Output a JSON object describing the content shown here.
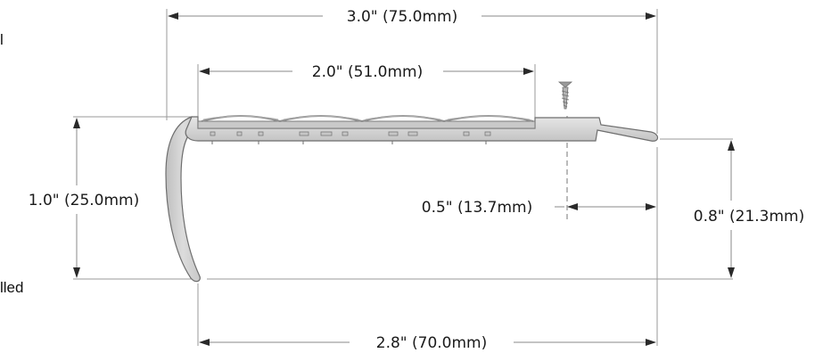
{
  "side_text": {
    "top": "l",
    "bottom": "lled"
  },
  "dimensions": {
    "overall_width": "3.0\" (75.0mm)",
    "tread_width": "2.0\" (51.0mm)",
    "nose_height": "1.0\" (25.0mm)",
    "screw_offset": "0.5\" (13.7mm)",
    "flange_height": "0.8\" (21.3mm)",
    "base_width": "2.8\" (70.0mm)"
  },
  "colors": {
    "profile_fill": "#d4d4d4",
    "profile_stroke": "#6e6e6e",
    "insert_fill": "#bdbdbd",
    "dimension_line": "#8a8a8a"
  },
  "icons": {
    "screw": "screw-icon"
  }
}
